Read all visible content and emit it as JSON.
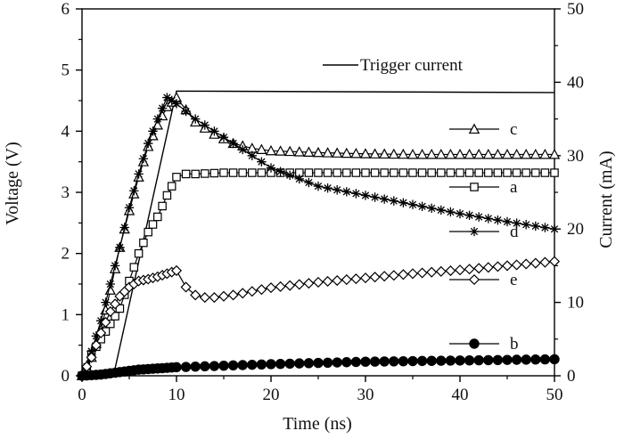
{
  "chart_data": {
    "type": "line",
    "xlabel": "Time (ns)",
    "ylabel_left": "Voltage (V)",
    "ylabel_right": "Current (mA)",
    "xlim": [
      0,
      50
    ],
    "ylim_left": [
      0,
      6
    ],
    "ylim_right": [
      0,
      50
    ],
    "x_ticks": [
      "0",
      "10",
      "20",
      "30",
      "40",
      "50"
    ],
    "y_left_ticks": [
      "0",
      "1",
      "2",
      "3",
      "4",
      "5",
      "6"
    ],
    "y_right_ticks": [
      "0",
      "10",
      "20",
      "30",
      "40",
      "50"
    ],
    "grid": false,
    "legend_placement": "right",
    "trigger_legend_label": "Trigger current",
    "trigger_current": {
      "name": "Trigger current",
      "axis": "right",
      "x": [
        0,
        2,
        3.5,
        10,
        50
      ],
      "y": [
        0,
        0,
        1,
        38.8,
        38.6
      ]
    },
    "series": [
      {
        "name": "c",
        "marker": "triangle",
        "axis": "left",
        "x": [
          0,
          0.5,
          1,
          2,
          3,
          4,
          5,
          6,
          7,
          8,
          9,
          10,
          11,
          12,
          14,
          16,
          18,
          20,
          25,
          30,
          35,
          40,
          45,
          50
        ],
        "y": [
          0,
          0.08,
          0.3,
          0.75,
          1.4,
          2.1,
          2.7,
          3.25,
          3.75,
          4.1,
          4.4,
          4.55,
          4.35,
          4.15,
          3.95,
          3.8,
          3.72,
          3.68,
          3.65,
          3.63,
          3.62,
          3.62,
          3.62,
          3.62
        ]
      },
      {
        "name": "a",
        "marker": "square",
        "axis": "left",
        "x": [
          0,
          0.5,
          1,
          2,
          3,
          4,
          5,
          6,
          7,
          8,
          9,
          10,
          11,
          12,
          15,
          20,
          25,
          30,
          35,
          40,
          45,
          50
        ],
        "y": [
          0,
          0.1,
          0.35,
          0.6,
          0.85,
          1.1,
          1.55,
          2.0,
          2.35,
          2.6,
          2.95,
          3.25,
          3.3,
          3.3,
          3.32,
          3.32,
          3.32,
          3.32,
          3.32,
          3.32,
          3.32,
          3.32
        ]
      },
      {
        "name": "d",
        "marker": "asterisk",
        "axis": "left",
        "x": [
          0,
          0.5,
          1,
          2,
          3,
          4,
          5,
          6,
          7,
          8,
          9,
          10,
          12,
          15,
          20,
          25,
          30,
          35,
          40,
          45,
          50
        ],
        "y": [
          0,
          0.15,
          0.4,
          0.9,
          1.5,
          2.1,
          2.75,
          3.3,
          3.8,
          4.2,
          4.55,
          4.45,
          4.2,
          3.9,
          3.4,
          3.1,
          2.95,
          2.8,
          2.65,
          2.52,
          2.4
        ]
      },
      {
        "name": "e",
        "marker": "diamond",
        "axis": "left",
        "x": [
          0,
          1,
          2,
          3,
          4,
          5,
          6,
          7,
          8,
          9,
          10,
          11,
          12,
          13,
          14,
          16,
          18,
          20,
          25,
          30,
          35,
          40,
          45,
          50
        ],
        "y": [
          0,
          0.3,
          0.7,
          1.05,
          1.3,
          1.45,
          1.55,
          1.58,
          1.62,
          1.67,
          1.72,
          1.45,
          1.32,
          1.28,
          1.28,
          1.32,
          1.38,
          1.44,
          1.53,
          1.6,
          1.67,
          1.73,
          1.8,
          1.87
        ]
      },
      {
        "name": "b",
        "marker": "circle",
        "axis": "left",
        "x": [
          0,
          1,
          2,
          3,
          4,
          5,
          6,
          7,
          8,
          9,
          10,
          12,
          14,
          16,
          18,
          20,
          25,
          30,
          35,
          40,
          45,
          50
        ],
        "y": [
          0,
          0.01,
          0.02,
          0.04,
          0.06,
          0.08,
          0.1,
          0.11,
          0.12,
          0.13,
          0.14,
          0.15,
          0.16,
          0.17,
          0.18,
          0.19,
          0.21,
          0.23,
          0.24,
          0.25,
          0.26,
          0.27
        ]
      }
    ],
    "legend": [
      {
        "label": "c",
        "marker": "triangle"
      },
      {
        "label": "a",
        "marker": "square"
      },
      {
        "label": "d",
        "marker": "asterisk"
      },
      {
        "label": "e",
        "marker": "diamond"
      },
      {
        "label": "b",
        "marker": "circle"
      }
    ]
  }
}
